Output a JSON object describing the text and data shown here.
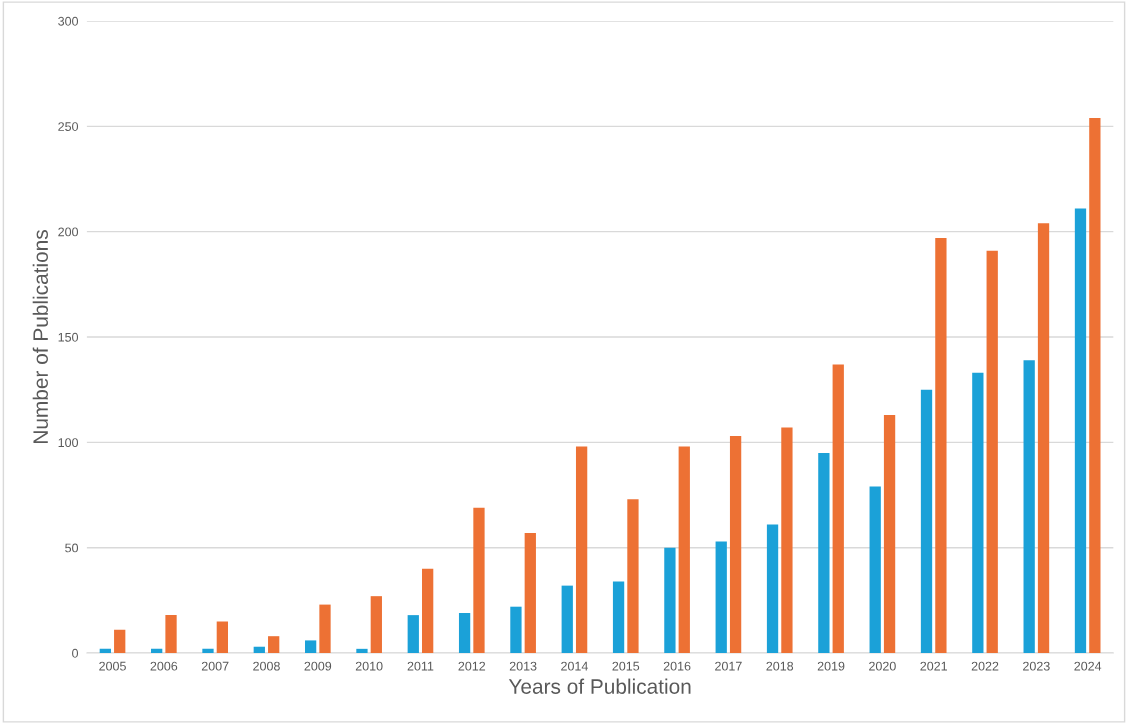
{
  "chart_data": {
    "type": "bar",
    "xlabel": "Years of Publication",
    "ylabel": "Number of Publications",
    "categories": [
      "2005",
      "2006",
      "2007",
      "2008",
      "2009",
      "2010",
      "2011",
      "2012",
      "2013",
      "2014",
      "2015",
      "2016",
      "2017",
      "2018",
      "2019",
      "2020",
      "2021",
      "2022",
      "2023",
      "2024"
    ],
    "series": [
      {
        "color": "#1ba1d8",
        "values": [
          2,
          2,
          2,
          3,
          6,
          2,
          18,
          19,
          22,
          32,
          34,
          50,
          53,
          61,
          95,
          79,
          125,
          133,
          139,
          211
        ]
      },
      {
        "color": "#ed7134",
        "values": [
          11,
          18,
          15,
          8,
          23,
          27,
          40,
          69,
          57,
          98,
          73,
          98,
          103,
          107,
          137,
          113,
          197,
          191,
          204,
          254
        ]
      }
    ],
    "ylim": [
      0,
      300
    ],
    "yticks": [
      0,
      50,
      100,
      150,
      200,
      250,
      300
    ],
    "grid": "y",
    "legend": false
  }
}
